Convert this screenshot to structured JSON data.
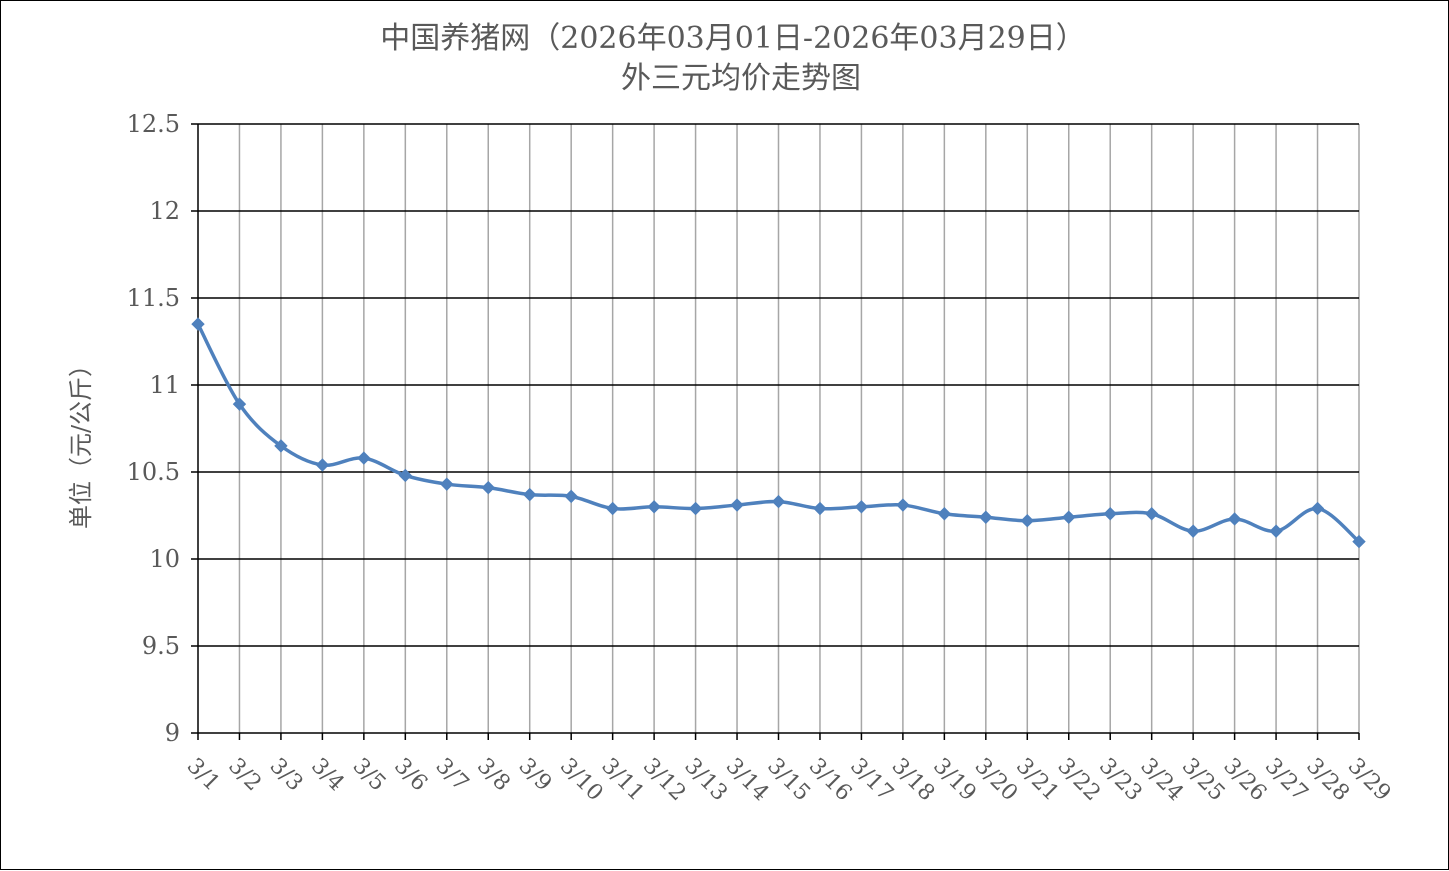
{
  "chart_data": {
    "type": "line",
    "title": "中国养猪网（2026年03月01日-2026年03月29日）",
    "subtitle": "外三元均价走势图",
    "xlabel": "",
    "ylabel": "单位（元/公斤）",
    "ylim": [
      9,
      12.5
    ],
    "yticks": [
      "12.5",
      "12",
      "11.5",
      "11",
      "10.5",
      "10",
      "9.5",
      "9"
    ],
    "ytick_values": [
      12.5,
      12,
      11.5,
      11,
      10.5,
      10,
      9.5,
      9
    ],
    "categories": [
      "3/1",
      "3/2",
      "3/3",
      "3/4",
      "3/5",
      "3/6",
      "3/7",
      "3/8",
      "3/9",
      "3/10",
      "3/11",
      "3/12",
      "3/13",
      "3/14",
      "3/15",
      "3/16",
      "3/17",
      "3/18",
      "3/19",
      "3/20",
      "3/21",
      "3/22",
      "3/23",
      "3/24",
      "3/25",
      "3/26",
      "3/27",
      "3/28",
      "3/29"
    ],
    "series": [
      {
        "values": [
          11.35,
          10.89,
          10.65,
          10.54,
          10.58,
          10.48,
          10.43,
          10.41,
          10.37,
          10.36,
          10.29,
          10.3,
          10.29,
          10.31,
          10.33,
          10.29,
          10.3,
          10.31,
          10.26,
          10.24,
          10.22,
          10.24,
          10.26,
          10.26,
          10.16,
          10.23,
          10.16,
          10.29,
          10.1
        ],
        "color": "#4f81bd",
        "marker": "diamond"
      }
    ],
    "grid": "horizontal-black-vertical-gray",
    "legend": "none"
  }
}
